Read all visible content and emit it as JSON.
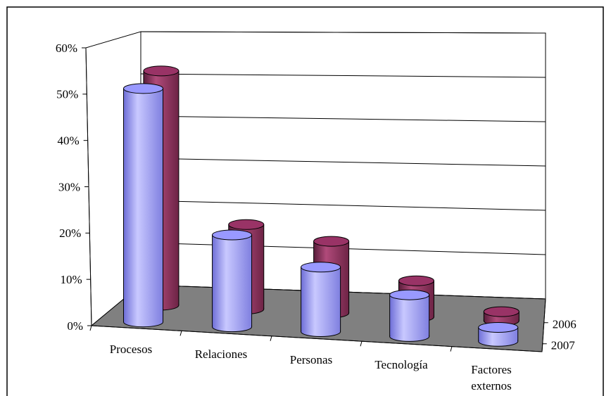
{
  "chart_data": {
    "type": "bar3d",
    "categories": [
      "Procesos",
      "Relaciones",
      "Personas",
      "Tecnología",
      "Factores externos"
    ],
    "series": [
      {
        "name": "2006",
        "color": "#993366",
        "values": [
          53,
          19,
          16,
          8,
          2
        ]
      },
      {
        "name": "2007",
        "color": "#9999ff",
        "values": [
          51,
          20,
          14,
          9,
          3
        ]
      }
    ],
    "ylim": [
      0,
      60
    ],
    "yticks": [
      {
        "value": 0,
        "label": "0%"
      },
      {
        "value": 10,
        "label": "10%"
      },
      {
        "value": 20,
        "label": "20%"
      },
      {
        "value": 30,
        "label": "30%"
      },
      {
        "value": 40,
        "label": "40%"
      },
      {
        "value": 50,
        "label": "50%"
      },
      {
        "value": 60,
        "label": "60%"
      }
    ],
    "grid": true
  }
}
